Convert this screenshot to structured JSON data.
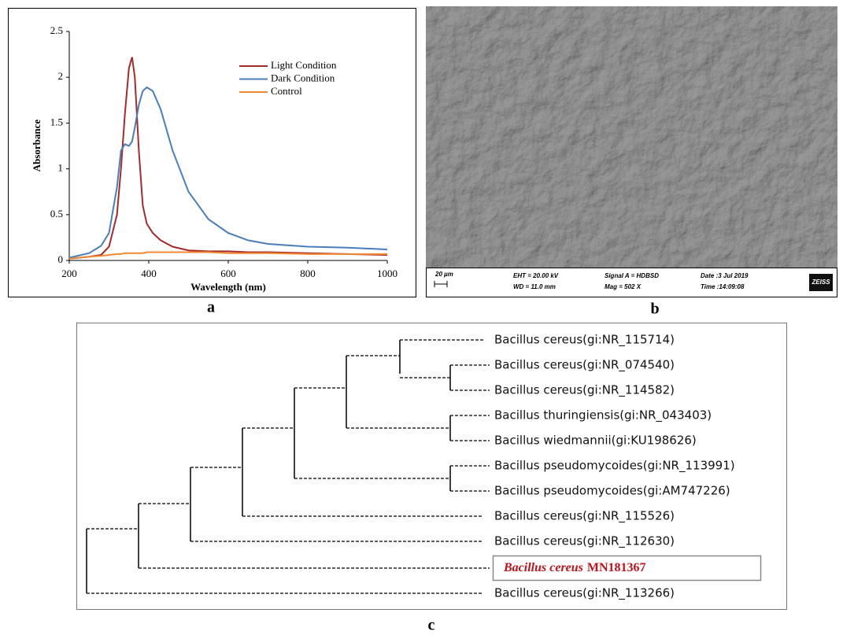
{
  "chart_data": {
    "type": "line",
    "x_label": "Wavelength (nm)",
    "y_label": "Absorbance",
    "x": [
      200,
      250,
      280,
      300,
      320,
      330,
      340,
      350,
      358,
      365,
      375,
      385,
      395,
      410,
      430,
      460,
      500,
      550,
      600,
      650,
      700,
      800,
      900,
      1000
    ],
    "series": [
      {
        "name": "Light Condition",
        "color": "#a52a2a",
        "values": [
          0.02,
          0.04,
          0.06,
          0.15,
          0.5,
          1.0,
          1.6,
          2.1,
          2.22,
          2.0,
          1.2,
          0.6,
          0.4,
          0.3,
          0.22,
          0.15,
          0.11,
          0.1,
          0.1,
          0.09,
          0.09,
          0.08,
          0.07,
          0.06
        ]
      },
      {
        "name": "Dark Condition",
        "color": "#4a7ebb",
        "values": [
          0.03,
          0.08,
          0.16,
          0.3,
          0.8,
          1.2,
          1.27,
          1.25,
          1.3,
          1.45,
          1.7,
          1.85,
          1.89,
          1.85,
          1.65,
          1.2,
          0.75,
          0.45,
          0.3,
          0.22,
          0.18,
          0.15,
          0.14,
          0.12
        ]
      },
      {
        "name": "Control",
        "color": "#f08a32",
        "values": [
          0.02,
          0.04,
          0.05,
          0.06,
          0.07,
          0.07,
          0.08,
          0.08,
          0.08,
          0.08,
          0.08,
          0.08,
          0.09,
          0.09,
          0.09,
          0.09,
          0.09,
          0.09,
          0.08,
          0.08,
          0.08,
          0.07,
          0.07,
          0.07
        ]
      }
    ],
    "xlim": [
      200,
      1000
    ],
    "xticks": [
      200,
      400,
      600,
      800,
      1000
    ],
    "ylim": [
      0,
      2.5
    ],
    "yticks": [
      0,
      0.5,
      1,
      1.5,
      2,
      2.5
    ]
  },
  "panels": {
    "a": "a",
    "b": "b",
    "c": "c"
  },
  "sem": {
    "scale": "20 µm",
    "eht": "EHT = 20.00 kV",
    "wd": "WD = 11.0 mm",
    "signal": "Signal A = HDBSD",
    "mag": "Mag =  502 X",
    "date": "Date :3 Jul 2019",
    "time": "Time :14:09:08",
    "brand": "ZEISS"
  },
  "tree": {
    "leaves": [
      "Bacillus cereus(gi:NR_115714)",
      "Bacillus cereus(gi:NR_074540)",
      "Bacillus cereus(gi:NR_114582)",
      "Bacillus thuringiensis(gi:NR_043403)",
      "Bacillus wiedmannii(gi:KU198626)",
      "Bacillus pseudomycoides(gi:NR_113991)",
      "Bacillus pseudomycoides(gi:AM747226)",
      "Bacillus cereus(gi:NR_115526)",
      "Bacillus cereus(gi:NR_112630)",
      {
        "species": "Bacillus cereus",
        "accession": "MN181367"
      },
      "Bacillus cereus(gi:NR_113266)"
    ]
  }
}
